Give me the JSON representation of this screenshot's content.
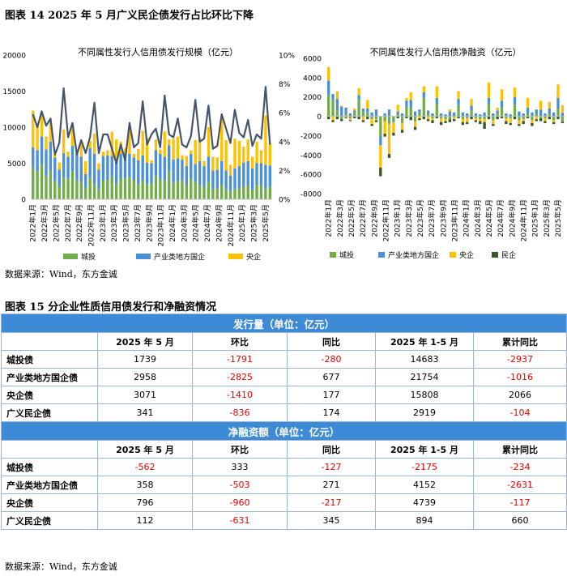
{
  "fig14": {
    "title": "图表 14    2025 年 5 月广义民企债发行占比环比下降"
  },
  "fig15": {
    "title": "图表 15  分企业性质信用债发行和净融资情况"
  },
  "source1": "数据来源：Wind，东方金诚",
  "source2": "数据来源：Wind，东方金诚",
  "chart_data": [
    {
      "type": "bar",
      "stacked": true,
      "title": "不同属性发行人信用债发行规模（亿元）",
      "ylim": [
        0,
        20000
      ],
      "y2lim": [
        0,
        10
      ],
      "yticks": [
        "0",
        "5000",
        "10000",
        "15000",
        "20000"
      ],
      "y2ticks": [
        "0%",
        "2%",
        "4%",
        "6%",
        "8%",
        "10%"
      ],
      "xtick_labels": [
        "2022年1月",
        "2022年3月",
        "2022年5月",
        "2022年7月",
        "2022年9月",
        "2022年11月",
        "2023年1月",
        "2023年3月",
        "2023年5月",
        "2023年7月",
        "2023年9月",
        "2023年11月",
        "2024年1月",
        "2024年3月",
        "2024年5月",
        "2024年7月",
        "2024年9月",
        "2024年11月",
        "2025年1月",
        "2025年3月",
        "2025年5月"
      ],
      "series": [
        {
          "name": "城投",
          "color": "#70ad47",
          "values": [
            4400,
            3900,
            4800,
            3200,
            4000,
            2500,
            1800,
            3000,
            2900,
            3900,
            2600,
            2400,
            1600,
            3000,
            2100,
            1400,
            2600,
            2700,
            3200,
            2200,
            2800,
            2900,
            3000,
            2700,
            2100,
            2700,
            2100,
            2200,
            3300,
            2800,
            2600,
            3800,
            2300,
            2500,
            2600,
            2000,
            2800,
            2400,
            2000,
            1700,
            2400,
            1400,
            1500,
            2000,
            1400,
            1100,
            1400,
            1500,
            1800,
            1900,
            1300,
            2000,
            1900,
            1500,
            1739
          ]
        },
        {
          "name": "产业类地方国企",
          "color": "#4a90d9",
          "values": [
            2800,
            2900,
            3900,
            3700,
            4000,
            3300,
            2300,
            3400,
            3000,
            3500,
            3700,
            3500,
            1900,
            4100,
            4200,
            2700,
            3400,
            3400,
            2800,
            3100,
            3500,
            3500,
            3300,
            3100,
            3300,
            3400,
            3000,
            2800,
            3500,
            3500,
            3300,
            3700,
            3200,
            3200,
            2900,
            2600,
            3500,
            2500,
            3300,
            2900,
            3500,
            2600,
            2600,
            3300,
            2600,
            2200,
            2900,
            3100,
            3300,
            3400,
            3000,
            3000,
            3100,
            3300,
            2958
          ]
        },
        {
          "name": "央企",
          "color": "#ffc000",
          "values": [
            5100,
            3400,
            3400,
            1800,
            2800,
            400,
            1000,
            3300,
            700,
            3000,
            500,
            1900,
            1800,
            1000,
            2800,
            900,
            600,
            700,
            3400,
            3000,
            1700,
            700,
            3200,
            500,
            1600,
            3400,
            3400,
            400,
            1500,
            600,
            3500,
            800,
            2900,
            3000,
            600,
            1400,
            500,
            3300,
            3200,
            700,
            4100,
            1900,
            1700,
            6000,
            4200,
            1500,
            4100,
            3500,
            2200,
            3000,
            1600,
            3000,
            1800,
            6800,
            3071
          ]
        }
      ],
      "line": {
        "name": "广义民企占比",
        "values": [
          5.9,
          5.0,
          6.1,
          5.1,
          5.6,
          3.1,
          3.9,
          7.7,
          4.3,
          5.3,
          3.1,
          4.1,
          3.2,
          4.3,
          6.7,
          3.2,
          4.5,
          4.5,
          3.5,
          2.5,
          3.8,
          2.7,
          5.3,
          3.6,
          3.9,
          6.8,
          3.8,
          4.5,
          4.9,
          3.6,
          7.2,
          4.5,
          4.3,
          5.6,
          3.8,
          3.6,
          4.4,
          6.9,
          4.0,
          4.2,
          6.5,
          3.5,
          3.7,
          5.9,
          4.9,
          3.9,
          6.2,
          4.6,
          4.3,
          5.5,
          3.7,
          4.5,
          4.2,
          7.8,
          3.8
        ]
      }
    },
    {
      "type": "bar",
      "stacked": true,
      "title": "不同属性发行人信用债净融资（亿元）",
      "ylim": [
        -8000,
        6000
      ],
      "yticks": [
        "6000",
        "4000",
        "2000",
        "0",
        "-2000",
        "-4000",
        "-6000",
        "-8000"
      ],
      "xtick_labels": [
        "2022年1月",
        "2022年3月",
        "2022年5月",
        "2022年7月",
        "2022年9月",
        "2022年11月",
        "2023年1月",
        "2023年3月",
        "2023年5月",
        "2023年7月",
        "2023年9月",
        "2023年11月",
        "2024年1月",
        "2024年3月",
        "2024年5月",
        "2024年7月",
        "2024年9月",
        "2024年11月",
        "2025年1月",
        "2025年3月",
        "2025年5月"
      ],
      "series": [
        {
          "name": "城投",
          "color": "#70ad47",
          "values": [
            2200,
            1700,
            600,
            -300,
            300,
            -200,
            400,
            1700,
            500,
            400,
            -300,
            -300,
            -2100,
            -500,
            -800,
            -400,
            200,
            -700,
            1000,
            900,
            -500,
            400,
            1900,
            300,
            -200,
            1300,
            -200,
            -300,
            -300,
            -100,
            1200,
            -300,
            -200,
            600,
            -200,
            -300,
            -300,
            1300,
            -400,
            300,
            900,
            -200,
            -200,
            1200,
            -400,
            -300,
            300,
            -400,
            300,
            -200,
            -200,
            300,
            -400,
            800,
            -562
          ]
        },
        {
          "name": "产业类地方国企",
          "color": "#4a90d9",
          "values": [
            1500,
            600,
            1200,
            1000,
            600,
            300,
            200,
            500,
            300,
            400,
            400,
            700,
            -900,
            300,
            700,
            -200,
            300,
            300,
            600,
            800,
            500,
            300,
            600,
            300,
            300,
            600,
            300,
            200,
            500,
            400,
            600,
            400,
            300,
            500,
            300,
            200,
            400,
            600,
            300,
            300,
            700,
            300,
            200,
            800,
            500,
            300,
            600,
            400,
            400,
            700,
            300,
            500,
            400,
            1100,
            358
          ]
        },
        {
          "name": "央企",
          "color": "#ffc000",
          "values": [
            1400,
            -400,
            800,
            100,
            -100,
            -200,
            200,
            700,
            -400,
            900,
            -500,
            -100,
            -2300,
            -1300,
            -3100,
            -1100,
            700,
            -700,
            300,
            800,
            -600,
            -200,
            600,
            -300,
            -200,
            1200,
            -400,
            -200,
            200,
            -200,
            800,
            -300,
            -400,
            700,
            -200,
            -200,
            -300,
            1600,
            -400,
            300,
            1200,
            -300,
            -500,
            1000,
            -400,
            -200,
            1000,
            -300,
            -300,
            900,
            -300,
            700,
            -200,
            1400,
            796
          ]
        },
        {
          "name": "民企",
          "color": "#375623",
          "values": [
            -300,
            -200,
            -300,
            -200,
            -100,
            -100,
            -200,
            -300,
            -200,
            -300,
            -200,
            -200,
            -900,
            -300,
            -400,
            -300,
            -200,
            -300,
            -200,
            -400,
            -300,
            -200,
            -300,
            -200,
            -300,
            -200,
            -300,
            -200,
            -300,
            -200,
            -200,
            -300,
            -200,
            -300,
            -200,
            -300,
            -700,
            -300,
            -200,
            -300,
            -200,
            -300,
            -200,
            -300,
            -200,
            -300,
            -200,
            -300,
            -200,
            -300,
            -200,
            -300,
            -200,
            -300,
            -150
          ]
        }
      ]
    }
  ],
  "table": {
    "section1": "发行量（单位：亿元）",
    "section2": "净融资额（单位：亿元）",
    "headers": [
      "",
      "2025 年 5 月",
      "环比",
      "同比",
      "2025 年 1-5 月",
      "累计同比"
    ],
    "issuance_rows": [
      [
        "城投债",
        "1739",
        "-1791",
        "-280",
        "14683",
        "-2937"
      ],
      [
        "产业类地方国企债",
        "2958",
        "-2825",
        "677",
        "21754",
        "-1016"
      ],
      [
        "央企债",
        "3071",
        "-1410",
        "177",
        "15808",
        "2066"
      ],
      [
        "广义民企债",
        "341",
        "-836",
        "174",
        "2919",
        "-104"
      ]
    ],
    "net_rows": [
      [
        "城投债",
        "-562",
        "333",
        "-127",
        "-2175",
        "-234"
      ],
      [
        "产业类地方国企债",
        "358",
        "-503",
        "271",
        "4152",
        "-2631"
      ],
      [
        "央企债",
        "796",
        "-960",
        "-217",
        "4739",
        "-117"
      ],
      [
        "广义民企债",
        "112",
        "-631",
        "345",
        "894",
        "660"
      ]
    ]
  }
}
